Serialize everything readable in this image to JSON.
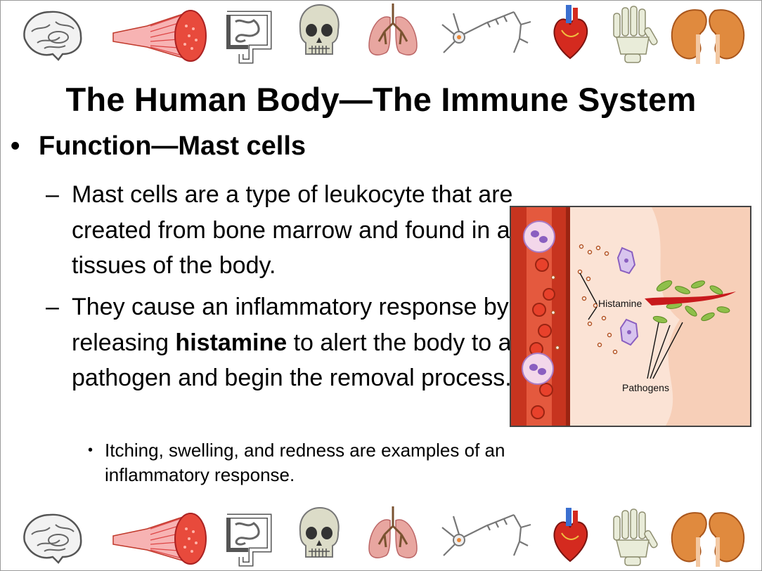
{
  "slide": {
    "title": "The Human Body—The Immune System",
    "bullet": "Function—Mast cells",
    "bullet_marker": "•",
    "dash_marker": "–",
    "point1": "Mast cells are a type of leukocyte that are created from bone marrow and found in all tissues of the body.",
    "point2_before": "They cause an inflammatory response by releasing ",
    "point2_bold": "histamine",
    "point2_after": " to alert the body to a pathogen and begin the removal process.",
    "subpoint": "Itching, swelling, and redness are examples of an inflammatory response."
  },
  "figure": {
    "label_histamine": "Histamine",
    "label_pathogens": "Pathogens"
  },
  "icons": [
    "brain-icon",
    "muscle-icon",
    "intestine-icon",
    "skull-icon",
    "lungs-icon",
    "neuron-icon",
    "heart-icon",
    "hand-bones-icon",
    "kidneys-icon"
  ],
  "colors": {
    "blood_vessel": "#c4341f",
    "tissue": "#fbe3d5",
    "mast_cell": "#9a7bc9",
    "pathogen": "#8fbf4a"
  }
}
